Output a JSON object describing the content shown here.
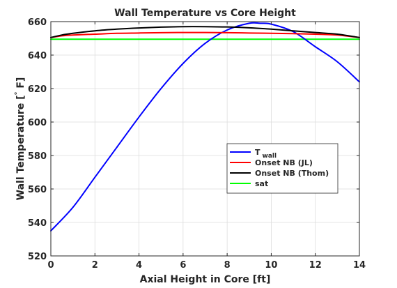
{
  "chart_data": {
    "type": "line",
    "title": "Wall Temperature vs Core Height",
    "xlabel": "Axial Height in Core [ft]",
    "ylabel_main": "Wall Temperature [",
    "ylabel_degree": "°",
    "ylabel_unit": " F]",
    "xlim": [
      0,
      14
    ],
    "ylim": [
      520,
      660
    ],
    "xticks": [
      0,
      2,
      4,
      6,
      8,
      10,
      12,
      14
    ],
    "yticks": [
      520,
      540,
      560,
      580,
      600,
      620,
      640,
      660
    ],
    "grid": true,
    "legend_position": "center-right",
    "series": [
      {
        "name": "T",
        "name_subscript": "wall",
        "color": "#0000ff",
        "x": [
          0,
          1,
          2,
          3,
          4,
          5,
          6,
          7,
          8,
          9,
          9.5,
          10,
          11,
          12,
          13,
          14
        ],
        "y": [
          535,
          549,
          567,
          585,
          603,
          620,
          635,
          647,
          655,
          659,
          659,
          658.5,
          654,
          645,
          636,
          624
        ]
      },
      {
        "name": "Onset NB (JL)",
        "color": "#ff0000",
        "x": [
          0,
          0.5,
          1,
          2,
          3,
          4,
          5,
          6,
          7,
          8,
          9,
          10,
          11,
          12,
          13,
          14
        ],
        "y": [
          650.5,
          651.5,
          652,
          652.5,
          653,
          653.2,
          653.4,
          653.5,
          653.5,
          653.4,
          653.2,
          653,
          652.8,
          652.5,
          652,
          650.5
        ]
      },
      {
        "name": "Onset NB (Thom)",
        "color": "#000000",
        "x": [
          0,
          0.5,
          1,
          2,
          3,
          4,
          5,
          6,
          7,
          8,
          9,
          10,
          11,
          12,
          13,
          14
        ],
        "y": [
          650.5,
          652,
          653,
          654.5,
          655.5,
          656.2,
          656.7,
          657,
          657,
          656.8,
          656.3,
          655.5,
          654.5,
          653.5,
          652.5,
          650.5
        ]
      },
      {
        "name": "sat",
        "color": "#00ff00",
        "x": [
          0,
          14
        ],
        "y": [
          649.5,
          649.5
        ]
      }
    ]
  }
}
